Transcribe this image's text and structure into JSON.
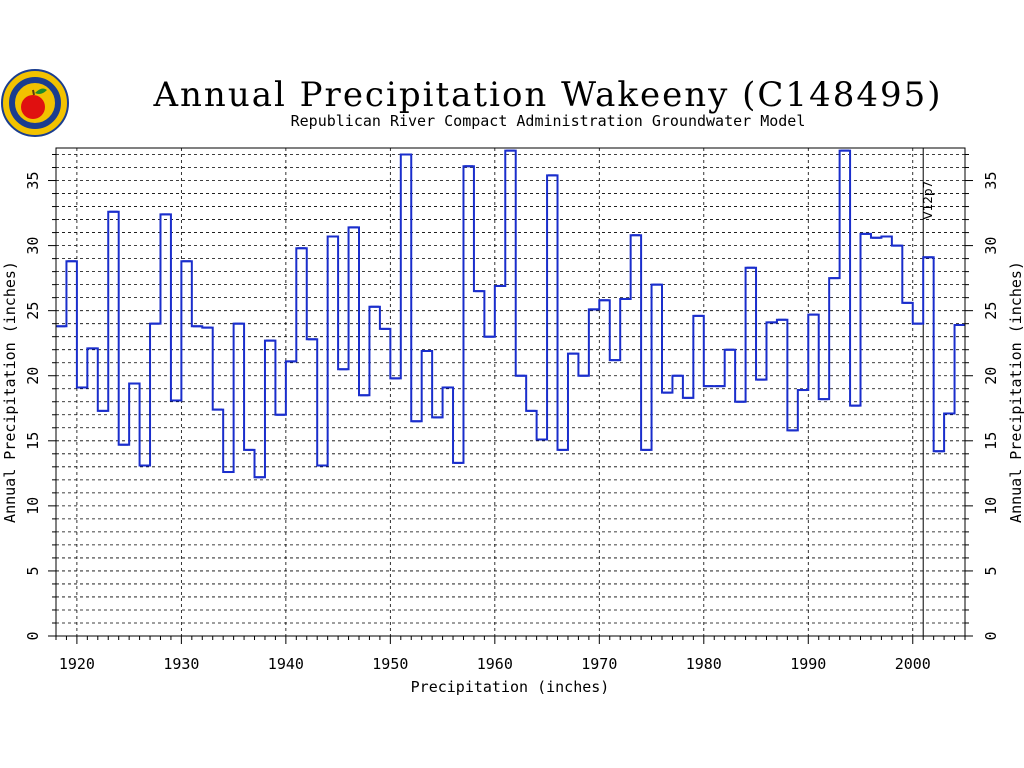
{
  "logo": {
    "name": "rrca-logo",
    "colors": {
      "ring": "#1a3d8f",
      "fill": "#f2c200",
      "apple": "#e01010",
      "leaf": "#1f8a2a"
    }
  },
  "chart_data": {
    "type": "line",
    "step": true,
    "title": "Annual Precipitation Wakeeny (C148495)",
    "subtitle": "Republican River Compact Administration Groundwater Model",
    "xlabel": "Precipitation  (inches)",
    "ylabel": "Annual  Precipitation  (inches)",
    "ylabel_right": "Annual  Precipitation  (inches)",
    "xlim": [
      1918,
      2005
    ],
    "ylim": [
      0,
      37.5
    ],
    "x_ticks": [
      1920,
      1930,
      1940,
      1950,
      1960,
      1970,
      1980,
      1990,
      2000
    ],
    "y_ticks": [
      0,
      5,
      10,
      15,
      20,
      25,
      30,
      35
    ],
    "grid": true,
    "annotation": {
      "text": "V12p7",
      "x": 2001
    },
    "series": [
      {
        "color": "#1a2ecc",
        "x": [
          1918,
          1919,
          1920,
          1921,
          1922,
          1923,
          1924,
          1925,
          1926,
          1927,
          1928,
          1929,
          1930,
          1931,
          1932,
          1933,
          1934,
          1935,
          1936,
          1937,
          1938,
          1939,
          1940,
          1941,
          1942,
          1943,
          1944,
          1945,
          1946,
          1947,
          1948,
          1949,
          1950,
          1951,
          1952,
          1953,
          1954,
          1955,
          1956,
          1957,
          1958,
          1959,
          1960,
          1961,
          1962,
          1963,
          1964,
          1965,
          1966,
          1967,
          1968,
          1969,
          1970,
          1971,
          1972,
          1973,
          1974,
          1975,
          1976,
          1977,
          1978,
          1979,
          1980,
          1981,
          1982,
          1983,
          1984,
          1985,
          1986,
          1987,
          1988,
          1989,
          1990,
          1991,
          1992,
          1993,
          1994,
          1995,
          1996,
          1997,
          1998,
          1999,
          2000,
          2001,
          2002,
          2003,
          2004
        ],
        "values": [
          23.8,
          28.8,
          19.1,
          22.1,
          17.3,
          32.6,
          14.7,
          19.4,
          13.1,
          24.0,
          32.4,
          18.1,
          28.8,
          23.8,
          23.7,
          17.4,
          12.6,
          24.0,
          14.3,
          12.2,
          22.7,
          17.0,
          21.1,
          29.8,
          22.8,
          13.1,
          30.7,
          20.5,
          31.4,
          18.5,
          25.3,
          23.6,
          19.8,
          37.0,
          16.5,
          21.9,
          16.8,
          19.1,
          13.3,
          36.1,
          26.5,
          23.0,
          26.9,
          37.3,
          20.0,
          17.3,
          15.1,
          35.4,
          14.3,
          21.7,
          20.0,
          25.1,
          25.8,
          21.2,
          25.9,
          30.8,
          14.3,
          27.0,
          18.7,
          20.0,
          18.3,
          24.6,
          19.2,
          19.2,
          22.0,
          18.0,
          28.3,
          19.7,
          24.1,
          24.3,
          15.8,
          18.9,
          24.7,
          18.2,
          27.5,
          37.3,
          17.7,
          30.9,
          30.6,
          30.7,
          30.0,
          25.6,
          24.0,
          29.1,
          14.2,
          17.1,
          23.9
        ]
      }
    ]
  }
}
